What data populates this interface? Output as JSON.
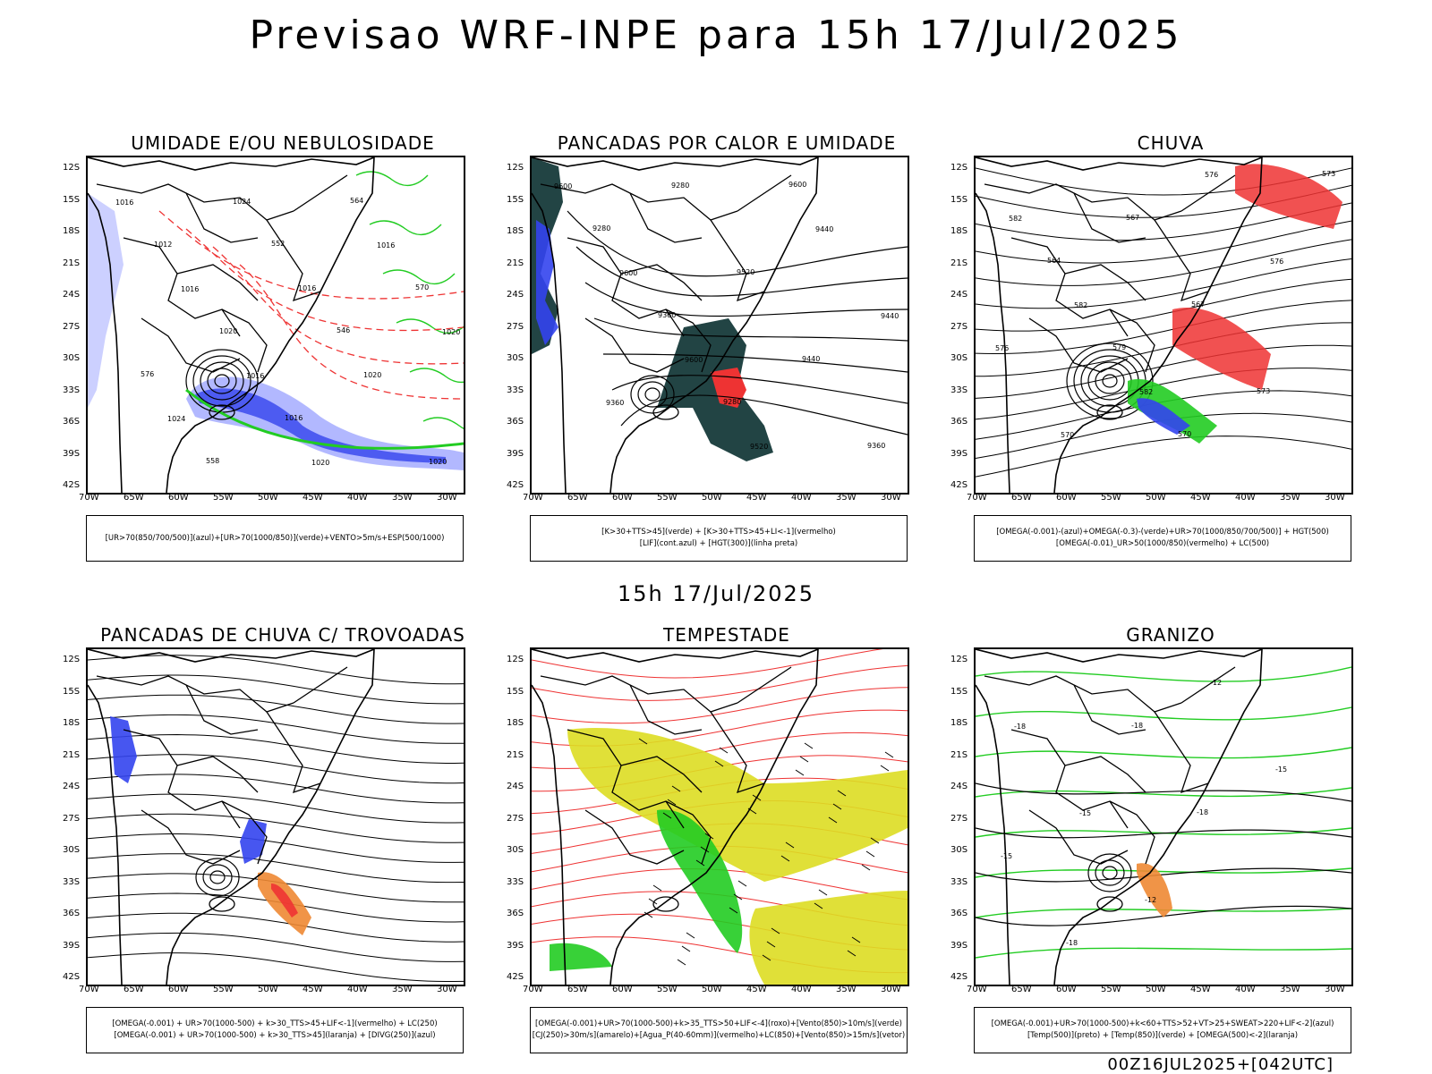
{
  "title": "Previsao WRF-INPE  para 15h 17/Jul/2025",
  "mid_title": "15h 17/Jul/2025",
  "footer": "00Z16JUL2025+[042UTC]",
  "lat_labels": [
    "12S",
    "15S",
    "18S",
    "21S",
    "24S",
    "27S",
    "30S",
    "33S",
    "36S",
    "39S",
    "42S"
  ],
  "lon_labels": [
    "70W",
    "65W",
    "60W",
    "55W",
    "50W",
    "45W",
    "40W",
    "35W",
    "30W"
  ],
  "panels": [
    {
      "title": "UMIDADE E/OU NEBULOSIDADE",
      "legend": [
        "[UR>70(850/700/500)](azul)+[UR>70(1000/850)](verde)+VENTO>5m/s+ESP(500/1000)"
      ],
      "contour_labels": [
        "1016",
        "1016",
        "1016",
        "1020",
        "1016",
        "1020",
        "1024",
        "1024",
        "1016",
        "1020",
        "1020",
        "1012",
        "1020",
        "1016",
        "564",
        "570",
        "576",
        "558",
        "552",
        "546"
      ]
    },
    {
      "title": "PANCADAS POR CALOR E UMIDADE",
      "legend": [
        "[K>30+TTS>45](verde) + [K>30+TTS>45+LI<-1](vermelho)",
        "[LIF](cont.azul) + [HGT(300)](linha preta)"
      ],
      "contour_labels": [
        "9600",
        "9600",
        "9600",
        "9520",
        "9440",
        "9440",
        "9360",
        "9280",
        "9520",
        "9440",
        "9360",
        "9280",
        "9360",
        "9280",
        "9600"
      ]
    },
    {
      "title": "CHUVA",
      "legend": [
        "[OMEGA(-0.001)-(azul)+OMEGA(-0.3)-(verde)+UR>70(1000/850/700/500)] + HGT(500)",
        "[OMEGA(-0.01)_UR>50(1000/850)(vermelho) + LC(500)"
      ],
      "contour_labels": [
        "582",
        "582",
        "582",
        "576",
        "576",
        "576",
        "570",
        "567",
        "567",
        "573",
        "573",
        "564",
        "579",
        "570"
      ]
    },
    {
      "title": "PANCADAS DE CHUVA C/ TROVOADAS",
      "legend": [
        "[OMEGA(-0.001) + UR>70(1000-500) + k>30_TTS>45+LIF<-1](vermelho) + LC(250)",
        "[OMEGA(-0.001) + UR>70(1000-500) + k>30_TTS>45](laranja) + [DIVG(250)](azul)"
      ],
      "contour_labels": []
    },
    {
      "title": "TEMPESTADE",
      "legend": [
        "[OMEGA(-0.001)+UR>70(1000-500)+k>35_TTS>50+LIF<-4](roxo)+[Vento(850)>10m/s](verde)",
        "[CJ(250)>30m/s](amarelo)+[Agua_P(40-60mm)](vermelho)+LC(850)+[Vento(850)>15m/s](vetor)"
      ],
      "contour_labels": []
    },
    {
      "title": "GRANIZO",
      "legend": [
        "[OMEGA(-0.001)+UR>70(1000-500)+k<60+TTS>52+VT>25+SWEAT>220+LIF<-2](azul)",
        "[Temp(500)](preto) + [Temp(850)](verde) + [OMEGA(500)<-2](laranja)"
      ],
      "contour_labels": [
        "-18",
        "-15",
        "-12",
        "-12",
        "-15",
        "-15",
        "-18",
        "-18",
        "-18"
      ]
    }
  ],
  "colors": {
    "blue": "#3344ee",
    "green": "#22cc22",
    "red": "#ee3333",
    "yellow": "#dddd22",
    "dark_teal": "#224444",
    "orange": "#ee8833",
    "lavender": "#aab0ff"
  }
}
